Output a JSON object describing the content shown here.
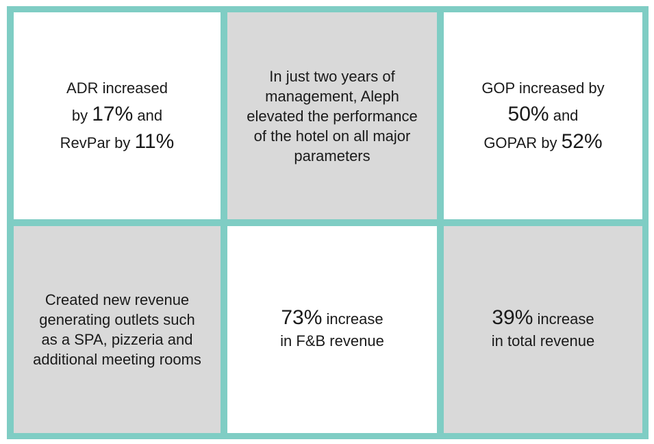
{
  "colors": {
    "border": "#7fcdc4",
    "white_cell": "#ffffff",
    "grey_cell": "#d9d9d9",
    "text": "#1a1a1a"
  },
  "cells": {
    "adr": {
      "l1": "ADR increased",
      "l2_pre": "by ",
      "l2_num": "17%",
      "l2_post": " and",
      "l3_pre": "RevPar by ",
      "l3_num": "11%"
    },
    "summary": {
      "lines": [
        "In just two years of",
        "management, Aleph",
        "elevated the performance",
        "of the hotel on all major",
        "parameters"
      ]
    },
    "gop": {
      "l1": "GOP increased by",
      "l2_num": "50%",
      "l2_post": " and",
      "l3_pre": "GOPAR by ",
      "l3_num": "52%"
    },
    "outlets": {
      "lines": [
        "Created new revenue",
        "generating outlets such",
        "as a SPA, pizzeria and",
        "additional meeting rooms"
      ]
    },
    "fnb": {
      "l1_num": "73%",
      "l1_post": " increase",
      "l2": "in F&B revenue"
    },
    "total": {
      "l1_num": "39%",
      "l1_post": " increase",
      "l2": "in total revenue"
    }
  }
}
